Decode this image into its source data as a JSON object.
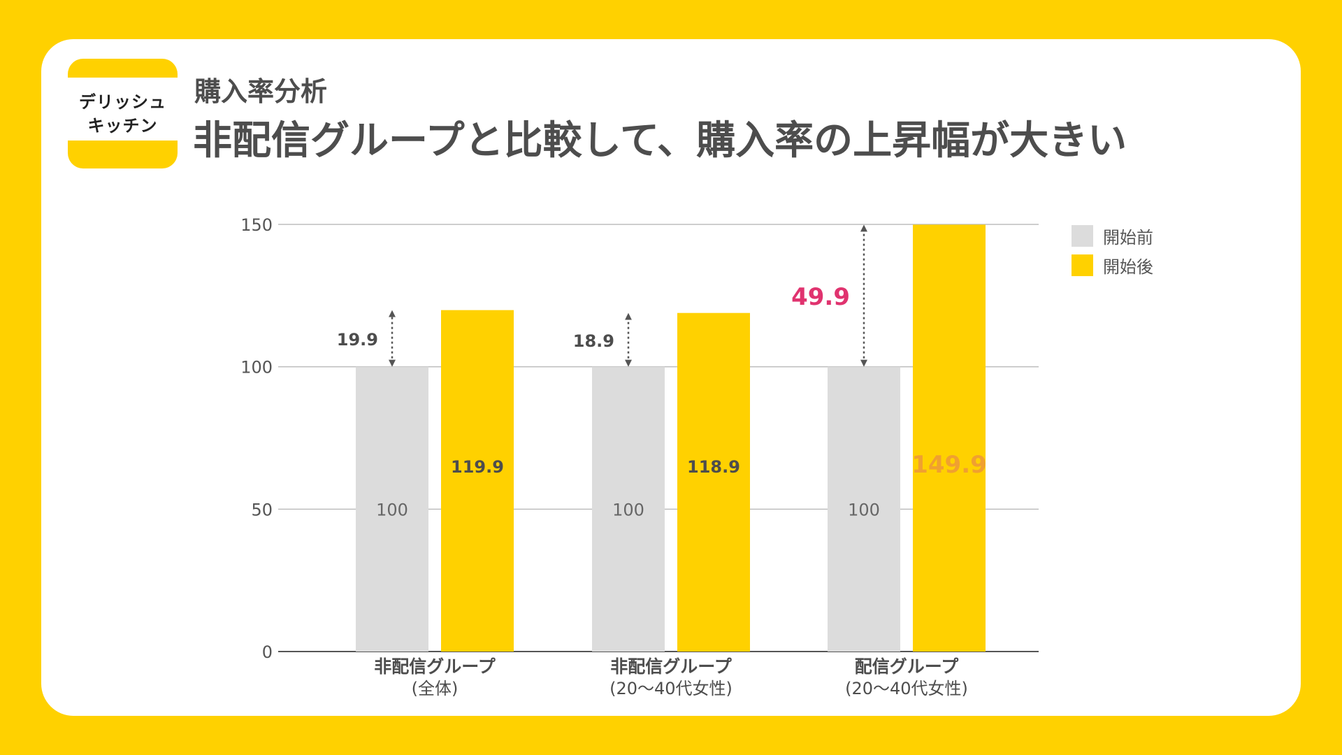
{
  "logo": {
    "line1": "デリッシュ",
    "line2": "キッチン"
  },
  "header": {
    "subtitle": "購入率分析",
    "title": "非配信グループと比較して、購入率の上昇幅が大きい"
  },
  "colors": {
    "background": "#FFD100",
    "before_bar": "#DCDCDC",
    "after_bar": "#FFD100",
    "highlight_diff": "#E0336F",
    "highlight_value": "#F0A030",
    "text": "#4D4D4D"
  },
  "chart_data": {
    "type": "bar",
    "categories": [
      {
        "line1": "非配信グループ",
        "line2": "(全体)"
      },
      {
        "line1": "非配信グループ",
        "line2": "(20〜40代女性)"
      },
      {
        "line1": "配信グループ",
        "line2": "(20〜40代女性)"
      }
    ],
    "series": [
      {
        "name": "開始前",
        "values": [
          100,
          100,
          100
        ],
        "labels": [
          "100",
          "100",
          "100"
        ]
      },
      {
        "name": "開始後",
        "values": [
          119.9,
          118.9,
          149.9
        ],
        "labels": [
          "119.9",
          "118.9",
          "149.9"
        ]
      }
    ],
    "differences": [
      "19.9",
      "18.9",
      "49.9"
    ],
    "highlight_index": 2,
    "y_ticks": [
      "0",
      "50",
      "100",
      "150"
    ],
    "ylim": [
      0,
      150
    ],
    "grid": true,
    "legend": "top-right"
  }
}
